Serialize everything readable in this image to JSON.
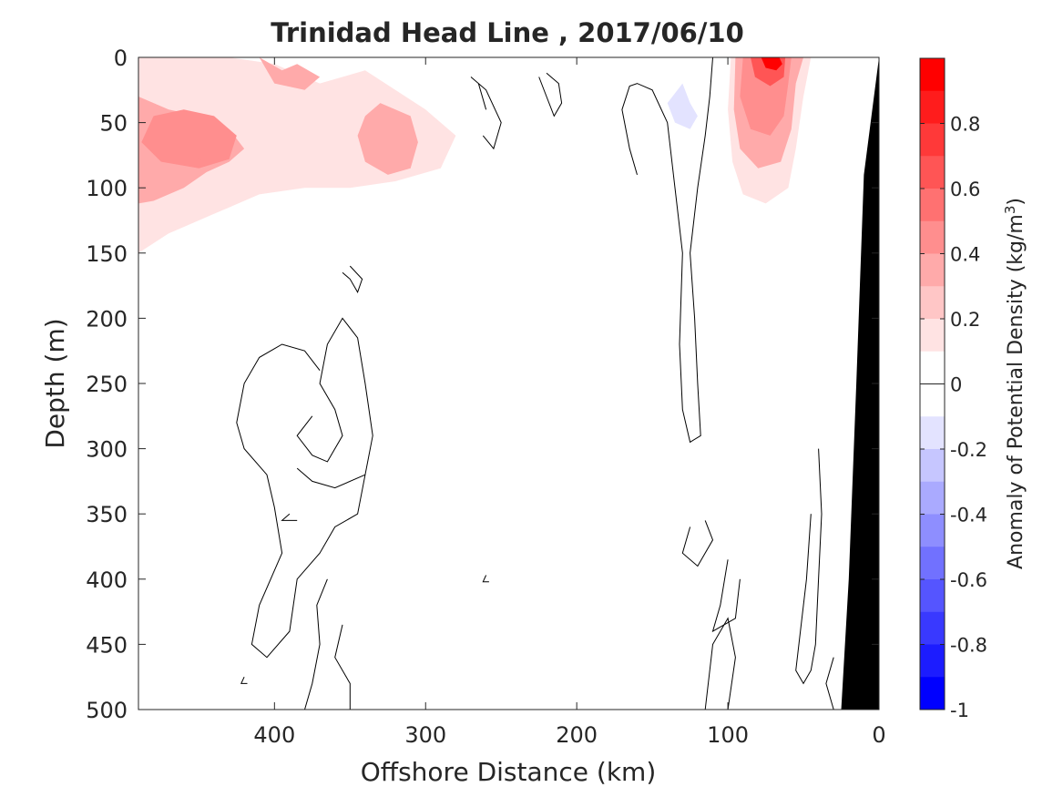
{
  "chart_data": {
    "type": "contour",
    "title": "Trinidad Head Line , 2017/06/10",
    "xlabel": "Offshore Distance (km)",
    "ylabel": "Depth (m)",
    "xlim": [
      490,
      0
    ],
    "ylim": [
      0,
      500
    ],
    "x_ticks": [
      400,
      300,
      200,
      100,
      0
    ],
    "y_ticks": [
      0,
      50,
      100,
      150,
      200,
      250,
      300,
      350,
      400,
      450,
      500
    ],
    "colorbar": {
      "label_main": "Anomaly of Potential Density (kg/m",
      "label_sup": "3",
      "label_end": ")",
      "range": [
        -1,
        1
      ],
      "tick_values": [
        0.8,
        0.6,
        0.4,
        0.2,
        0,
        -0.2,
        -0.4,
        -0.6,
        -0.8,
        -1
      ],
      "tick_labels": [
        "0.8",
        "0.6",
        "0.4",
        "0.2",
        "0",
        "-0.2",
        "-0.4",
        "-0.6",
        "-0.8",
        "-1"
      ],
      "colors": [
        "#ff0000",
        "#ff1c1c",
        "#ff3939",
        "#ff5555",
        "#ff7171",
        "#ff8e8e",
        "#ffaaaa",
        "#ffc6c6",
        "#ffe3e3",
        "#ffffff",
        "#ffffff",
        "#e3e3ff",
        "#c6c6ff",
        "#aaaaff",
        "#8e8eff",
        "#7171ff",
        "#5555ff",
        "#3939ff",
        "#1c1cff",
        "#0000ff"
      ]
    },
    "features": [
      {
        "name": "positive-anomaly-offshore",
        "level": 0.1,
        "points": [
          [
            490,
            0
          ],
          [
            400,
            0
          ],
          [
            360,
            8
          ],
          [
            320,
            0
          ],
          [
            270,
            0
          ],
          [
            255,
            20
          ],
          [
            250,
            60
          ],
          [
            270,
            90
          ],
          [
            290,
            110
          ],
          [
            305,
            140
          ],
          [
            320,
            150
          ],
          [
            360,
            145
          ],
          [
            390,
            150
          ],
          [
            410,
            150
          ],
          [
            430,
            165
          ],
          [
            450,
            175
          ],
          [
            470,
            185
          ],
          [
            490,
            210
          ]
        ]
      },
      {
        "name": "positive-anomaly-offshore",
        "level": 0.2,
        "points": [
          [
            490,
            0
          ],
          [
            430,
            0
          ],
          [
            400,
            5
          ],
          [
            370,
            20
          ],
          [
            340,
            10
          ],
          [
            300,
            40
          ],
          [
            280,
            60
          ],
          [
            290,
            85
          ],
          [
            320,
            95
          ],
          [
            350,
            100
          ],
          [
            380,
            100
          ],
          [
            410,
            105
          ],
          [
            440,
            120
          ],
          [
            470,
            135
          ],
          [
            490,
            150
          ]
        ]
      },
      {
        "name": "positive-anomaly-offshore",
        "level": 0.3,
        "points": [
          [
            490,
            30
          ],
          [
            470,
            40
          ],
          [
            450,
            45
          ],
          [
            430,
            55
          ],
          [
            420,
            70
          ],
          [
            430,
            80
          ],
          [
            445,
            88
          ],
          [
            460,
            100
          ],
          [
            480,
            110
          ],
          [
            490,
            112
          ]
        ]
      },
      {
        "name": "positive-anomaly-offshore",
        "level": 0.3,
        "points": [
          [
            330,
            35
          ],
          [
            310,
            45
          ],
          [
            305,
            65
          ],
          [
            310,
            85
          ],
          [
            325,
            90
          ],
          [
            340,
            80
          ],
          [
            345,
            60
          ],
          [
            340,
            45
          ]
        ]
      },
      {
        "name": "positive-anomaly-offshore",
        "level": 0.3,
        "points": [
          [
            410,
            0
          ],
          [
            395,
            10
          ],
          [
            385,
            5
          ],
          [
            370,
            15
          ],
          [
            380,
            25
          ],
          [
            400,
            20
          ]
        ]
      },
      {
        "name": "positive-anomaly-offshore",
        "level": 0.4,
        "points": [
          [
            480,
            45
          ],
          [
            460,
            40
          ],
          [
            440,
            45
          ],
          [
            425,
            60
          ],
          [
            430,
            78
          ],
          [
            450,
            85
          ],
          [
            475,
            80
          ],
          [
            488,
            65
          ]
        ]
      },
      {
        "name": "positive-anomaly-offshore",
        "level": 0.5,
        "points": [
          [
            455,
            55
          ],
          [
            440,
            60
          ],
          [
            435,
            70
          ],
          [
            445,
            80
          ],
          [
            458,
            75
          ],
          [
            462,
            65
          ]
        ]
      },
      {
        "name": "positive-anomaly-coastal",
        "level": 0.1,
        "points": [
          [
            102,
            0
          ],
          [
            110,
            20
          ],
          [
            105,
            60
          ],
          [
            100,
            90
          ],
          [
            95,
            130
          ],
          [
            85,
            170
          ],
          [
            75,
            170
          ],
          [
            65,
            175
          ],
          [
            60,
            160
          ],
          [
            55,
            130
          ],
          [
            50,
            100
          ],
          [
            48,
            60
          ],
          [
            45,
            20
          ],
          [
            40,
            0
          ]
        ]
      },
      {
        "name": "positive-anomaly-coastal",
        "level": 0.2,
        "points": [
          [
            98,
            0
          ],
          [
            100,
            40
          ],
          [
            97,
            80
          ],
          [
            90,
            105
          ],
          [
            75,
            112
          ],
          [
            60,
            100
          ],
          [
            55,
            70
          ],
          [
            50,
            30
          ],
          [
            45,
            0
          ]
        ]
      },
      {
        "name": "positive-anomaly-coastal",
        "level": 0.3,
        "points": [
          [
            95,
            0
          ],
          [
            96,
            40
          ],
          [
            92,
            70
          ],
          [
            80,
            85
          ],
          [
            65,
            80
          ],
          [
            58,
            55
          ],
          [
            55,
            20
          ],
          [
            50,
            0
          ]
        ]
      },
      {
        "name": "positive-anomaly-coastal",
        "level": 0.5,
        "points": [
          [
            90,
            0
          ],
          [
            92,
            30
          ],
          [
            85,
            55
          ],
          [
            72,
            60
          ],
          [
            63,
            45
          ],
          [
            60,
            20
          ],
          [
            58,
            0
          ]
        ]
      },
      {
        "name": "positive-anomaly-coastal",
        "level": 0.7,
        "points": [
          [
            85,
            0
          ],
          [
            82,
            15
          ],
          [
            72,
            22
          ],
          [
            63,
            15
          ],
          [
            62,
            0
          ]
        ]
      },
      {
        "name": "positive-anomaly-coastal",
        "level": 0.9,
        "points": [
          [
            78,
            0
          ],
          [
            75,
            8
          ],
          [
            68,
            10
          ],
          [
            64,
            5
          ],
          [
            66,
            0
          ]
        ]
      },
      {
        "name": "positive-anomaly-midshelf",
        "level": 0.1,
        "points": [
          [
            200,
            0
          ],
          [
            195,
            40
          ],
          [
            190,
            90
          ],
          [
            185,
            120
          ],
          [
            165,
            100
          ],
          [
            160,
            50
          ],
          [
            165,
            10
          ],
          [
            170,
            0
          ]
        ]
      },
      {
        "name": "negative-anomaly",
        "level": -0.1,
        "points": [
          [
            130,
            20
          ],
          [
            125,
            35
          ],
          [
            120,
            45
          ],
          [
            125,
            55
          ],
          [
            135,
            50
          ],
          [
            140,
            35
          ]
        ]
      }
    ],
    "zero_contours": [
      [
        [
          110,
          0
        ],
        [
          112,
          30
        ],
        [
          115,
          60
        ],
        [
          120,
          100
        ],
        [
          125,
          150
        ],
        [
          122,
          200
        ],
        [
          120,
          250
        ],
        [
          118,
          290
        ],
        [
          125,
          295
        ],
        [
          130,
          270
        ],
        [
          132,
          220
        ],
        [
          130,
          150
        ],
        [
          135,
          100
        ],
        [
          140,
          50
        ],
        [
          150,
          25
        ],
        [
          160,
          20
        ],
        [
          165,
          22
        ],
        [
          170,
          40
        ],
        [
          165,
          70
        ],
        [
          160,
          90
        ]
      ],
      [
        [
          260,
          40
        ],
        [
          265,
          20
        ],
        [
          270,
          15
        ],
        [
          260,
          25
        ],
        [
          250,
          50
        ],
        [
          255,
          70
        ],
        [
          262,
          60
        ]
      ],
      [
        [
          225,
          15
        ],
        [
          220,
          30
        ],
        [
          215,
          45
        ],
        [
          210,
          35
        ],
        [
          212,
          20
        ],
        [
          220,
          12
        ]
      ],
      [
        [
          370,
          240
        ],
        [
          380,
          225
        ],
        [
          395,
          220
        ],
        [
          410,
          230
        ],
        [
          420,
          250
        ],
        [
          425,
          280
        ],
        [
          420,
          300
        ],
        [
          405,
          320
        ],
        [
          400,
          345
        ],
        [
          395,
          380
        ],
        [
          410,
          420
        ],
        [
          415,
          450
        ],
        [
          405,
          460
        ],
        [
          390,
          440
        ],
        [
          385,
          400
        ],
        [
          370,
          380
        ],
        [
          360,
          360
        ],
        [
          345,
          350
        ],
        [
          340,
          320
        ],
        [
          335,
          290
        ],
        [
          340,
          250
        ],
        [
          345,
          215
        ],
        [
          355,
          200
        ],
        [
          365,
          220
        ],
        [
          370,
          250
        ],
        [
          360,
          270
        ],
        [
          355,
          290
        ],
        [
          365,
          310
        ],
        [
          375,
          305
        ],
        [
          385,
          290
        ],
        [
          375,
          275
        ]
      ],
      [
        [
          355,
          165
        ],
        [
          350,
          170
        ],
        [
          345,
          180
        ],
        [
          342,
          170
        ],
        [
          350,
          160
        ]
      ],
      [
        [
          340,
          320
        ],
        [
          360,
          330
        ],
        [
          375,
          325
        ],
        [
          385,
          315
        ]
      ],
      [
        [
          390,
          350
        ],
        [
          395,
          355
        ],
        [
          385,
          355
        ]
      ],
      [
        [
          420,
          475
        ],
        [
          422,
          480
        ],
        [
          418,
          480
        ]
      ],
      [
        [
          260,
          397
        ],
        [
          262,
          402
        ],
        [
          258,
          402
        ]
      ],
      [
        [
          355,
          435
        ],
        [
          360,
          460
        ],
        [
          350,
          480
        ],
        [
          350,
          500
        ]
      ],
      [
        [
          380,
          500
        ],
        [
          375,
          480
        ],
        [
          370,
          450
        ],
        [
          372,
          420
        ],
        [
          365,
          400
        ]
      ],
      [
        [
          125,
          360
        ],
        [
          130,
          380
        ],
        [
          120,
          390
        ],
        [
          110,
          370
        ],
        [
          115,
          355
        ]
      ],
      [
        [
          100,
          385
        ],
        [
          105,
          420
        ],
        [
          110,
          440
        ],
        [
          95,
          430
        ],
        [
          92,
          400
        ]
      ],
      [
        [
          115,
          500
        ],
        [
          112,
          470
        ],
        [
          110,
          450
        ],
        [
          100,
          430
        ],
        [
          95,
          460
        ],
        [
          100,
          500
        ]
      ],
      [
        [
          40,
          300
        ],
        [
          38,
          350
        ],
        [
          40,
          400
        ],
        [
          42,
          450
        ],
        [
          45,
          470
        ],
        [
          50,
          480
        ],
        [
          55,
          470
        ],
        [
          52,
          440
        ],
        [
          48,
          400
        ],
        [
          45,
          350
        ]
      ],
      [
        [
          30,
          460
        ],
        [
          35,
          480
        ],
        [
          30,
          500
        ]
      ]
    ],
    "land_mask": [
      [
        0,
        0
      ],
      [
        10,
        90
      ],
      [
        15,
        250
      ],
      [
        20,
        400
      ],
      [
        25,
        500
      ],
      [
        0,
        500
      ]
    ]
  }
}
